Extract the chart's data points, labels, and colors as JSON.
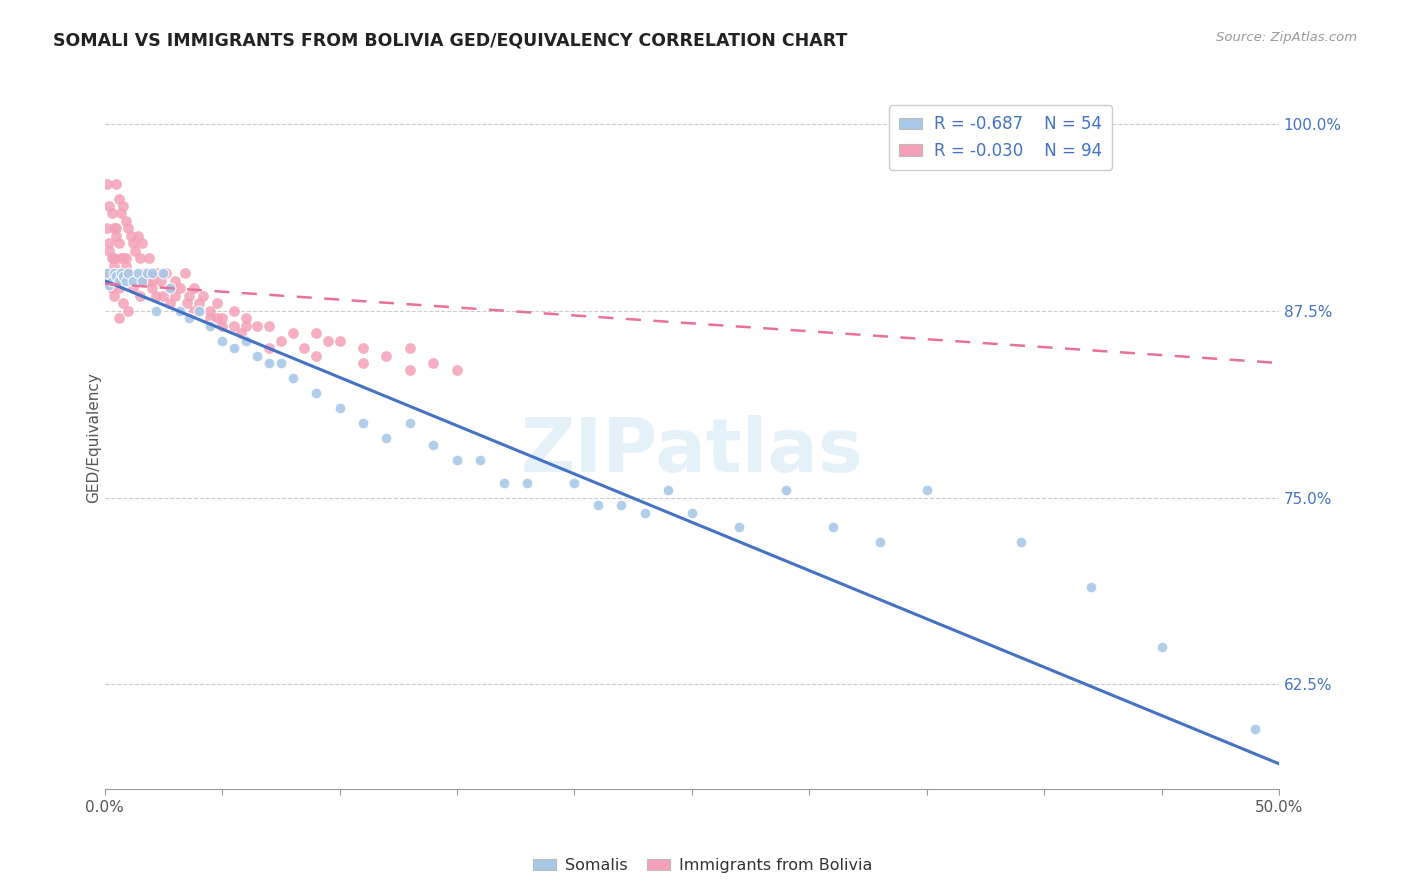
{
  "title": "SOMALI VS IMMIGRANTS FROM BOLIVIA GED/EQUIVALENCY CORRELATION CHART",
  "source": "Source: ZipAtlas.com",
  "ylabel": "GED/Equivalency",
  "ytick_labels": [
    "100.0%",
    "87.5%",
    "75.0%",
    "62.5%"
  ],
  "ytick_values": [
    1.0,
    0.875,
    0.75,
    0.625
  ],
  "xmin": 0.0,
  "xmax": 0.5,
  "ymin": 0.555,
  "ymax": 1.025,
  "legend_r_somali": "R = -0.687",
  "legend_n_somali": "N = 54",
  "legend_r_bolivia": "R = -0.030",
  "legend_n_bolivia": "N = 94",
  "color_somali": "#a8c8e8",
  "color_bolivia": "#f4a0b8",
  "color_somali_line": "#4472c4",
  "color_bolivia_line": "#e8709a",
  "watermark": "ZIPatlas",
  "somali_x": [
    0.001,
    0.002,
    0.003,
    0.004,
    0.005,
    0.006,
    0.007,
    0.008,
    0.009,
    0.01,
    0.012,
    0.014,
    0.016,
    0.018,
    0.02,
    0.022,
    0.025,
    0.028,
    0.032,
    0.036,
    0.04,
    0.045,
    0.05,
    0.055,
    0.06,
    0.065,
    0.07,
    0.075,
    0.08,
    0.09,
    0.1,
    0.11,
    0.12,
    0.13,
    0.14,
    0.15,
    0.16,
    0.17,
    0.18,
    0.2,
    0.21,
    0.22,
    0.23,
    0.24,
    0.25,
    0.27,
    0.29,
    0.31,
    0.33,
    0.35,
    0.39,
    0.42,
    0.45,
    0.49
  ],
  "somali_y": [
    0.9,
    0.892,
    0.895,
    0.9,
    0.898,
    0.895,
    0.9,
    0.898,
    0.895,
    0.9,
    0.895,
    0.9,
    0.895,
    0.9,
    0.9,
    0.875,
    0.9,
    0.89,
    0.875,
    0.87,
    0.875,
    0.865,
    0.855,
    0.85,
    0.855,
    0.845,
    0.84,
    0.84,
    0.83,
    0.82,
    0.81,
    0.8,
    0.79,
    0.8,
    0.785,
    0.775,
    0.775,
    0.76,
    0.76,
    0.76,
    0.745,
    0.745,
    0.74,
    0.755,
    0.74,
    0.73,
    0.755,
    0.73,
    0.72,
    0.755,
    0.72,
    0.69,
    0.65,
    0.595
  ],
  "bolivia_x": [
    0.001,
    0.001,
    0.002,
    0.002,
    0.002,
    0.003,
    0.003,
    0.003,
    0.004,
    0.004,
    0.004,
    0.005,
    0.005,
    0.005,
    0.006,
    0.006,
    0.006,
    0.007,
    0.007,
    0.008,
    0.008,
    0.009,
    0.009,
    0.01,
    0.01,
    0.011,
    0.012,
    0.013,
    0.014,
    0.015,
    0.016,
    0.017,
    0.018,
    0.019,
    0.02,
    0.022,
    0.024,
    0.026,
    0.028,
    0.03,
    0.032,
    0.034,
    0.036,
    0.038,
    0.04,
    0.042,
    0.045,
    0.048,
    0.05,
    0.055,
    0.06,
    0.065,
    0.07,
    0.075,
    0.08,
    0.085,
    0.09,
    0.095,
    0.1,
    0.11,
    0.12,
    0.13,
    0.14,
    0.15,
    0.01,
    0.008,
    0.006,
    0.004,
    0.003,
    0.002,
    0.015,
    0.025,
    0.035,
    0.045,
    0.055,
    0.02,
    0.03,
    0.04,
    0.05,
    0.06,
    0.005,
    0.007,
    0.009,
    0.012,
    0.016,
    0.022,
    0.028,
    0.038,
    0.048,
    0.058,
    0.07,
    0.09,
    0.11,
    0.13
  ],
  "bolivia_y": [
    0.96,
    0.93,
    0.945,
    0.92,
    0.9,
    0.94,
    0.91,
    0.89,
    0.93,
    0.91,
    0.885,
    0.96,
    0.925,
    0.895,
    0.95,
    0.92,
    0.89,
    0.94,
    0.91,
    0.945,
    0.91,
    0.935,
    0.905,
    0.93,
    0.9,
    0.925,
    0.92,
    0.915,
    0.925,
    0.91,
    0.92,
    0.9,
    0.895,
    0.91,
    0.895,
    0.9,
    0.895,
    0.9,
    0.89,
    0.895,
    0.89,
    0.9,
    0.885,
    0.89,
    0.88,
    0.885,
    0.875,
    0.88,
    0.87,
    0.875,
    0.87,
    0.865,
    0.865,
    0.855,
    0.86,
    0.85,
    0.86,
    0.855,
    0.855,
    0.85,
    0.845,
    0.85,
    0.84,
    0.835,
    0.875,
    0.88,
    0.87,
    0.905,
    0.895,
    0.915,
    0.885,
    0.885,
    0.88,
    0.87,
    0.865,
    0.89,
    0.885,
    0.875,
    0.865,
    0.865,
    0.93,
    0.9,
    0.91,
    0.89,
    0.895,
    0.885,
    0.88,
    0.875,
    0.87,
    0.86,
    0.85,
    0.845,
    0.84,
    0.835
  ],
  "somali_line_x": [
    0.0,
    0.5
  ],
  "somali_line_y": [
    0.895,
    0.572
  ],
  "bolivia_line_x": [
    0.0,
    0.5
  ],
  "bolivia_line_y": [
    0.893,
    0.84
  ]
}
